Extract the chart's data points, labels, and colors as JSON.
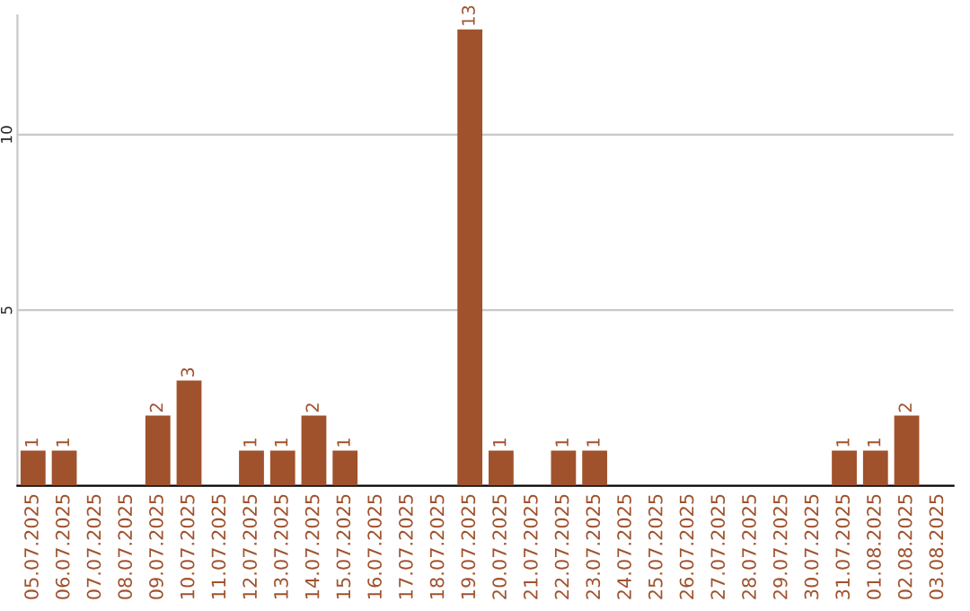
{
  "chart_data": {
    "type": "bar",
    "categories": [
      "05.07.2025",
      "06.07.2025",
      "07.07.2025",
      "08.07.2025",
      "09.07.2025",
      "10.07.2025",
      "11.07.2025",
      "12.07.2025",
      "13.07.2025",
      "14.07.2025",
      "15.07.2025",
      "16.07.2025",
      "17.07.2025",
      "18.07.2025",
      "19.07.2025",
      "20.07.2025",
      "21.07.2025",
      "22.07.2025",
      "23.07.2025",
      "24.07.2025",
      "25.07.2025",
      "26.07.2025",
      "27.07.2025",
      "28.07.2025",
      "29.07.2025",
      "30.07.2025",
      "31.07.2025",
      "01.08.2025",
      "02.08.2025",
      "03.08.2025"
    ],
    "values": [
      1,
      1,
      0,
      0,
      2,
      3,
      0,
      1,
      1,
      2,
      1,
      0,
      0,
      0,
      13,
      1,
      0,
      1,
      1,
      0,
      0,
      0,
      0,
      0,
      0,
      0,
      1,
      1,
      2,
      0
    ],
    "value_labels": [
      "1",
      "1",
      null,
      null,
      "2",
      "3",
      null,
      "1",
      "1",
      "2",
      "1",
      null,
      null,
      null,
      "13",
      "1",
      null,
      "1",
      "1",
      null,
      null,
      null,
      null,
      null,
      null,
      null,
      "1",
      "1",
      "2",
      null
    ],
    "color": "#a0522d",
    "ylim": [
      0,
      13.4
    ],
    "yticks": [
      5,
      10
    ],
    "grid": "y"
  }
}
